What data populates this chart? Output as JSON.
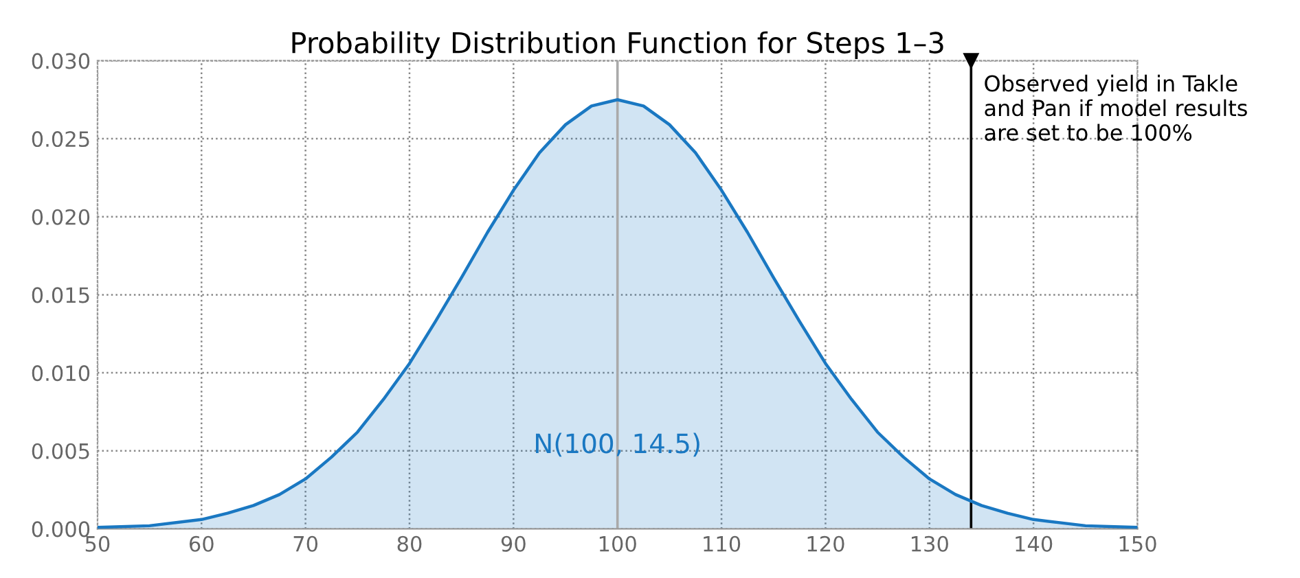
{
  "chart_data": {
    "type": "area",
    "title": "Probability Distribution Function for Steps 1–3",
    "x": [
      50,
      55,
      60,
      62.5,
      65,
      67.5,
      70,
      72.5,
      75,
      77.5,
      80,
      82.5,
      85,
      87.5,
      90,
      92.5,
      95,
      97.5,
      100,
      102.5,
      105,
      107.5,
      110,
      112.5,
      115,
      117.5,
      120,
      122.5,
      125,
      127.5,
      130,
      132.5,
      135,
      137.5,
      140,
      145,
      150
    ],
    "series": [
      {
        "color": "#1a78c2",
        "values": [
          0.0001,
          0.0002,
          0.0006,
          0.001,
          0.0015,
          0.0022,
          0.0032,
          0.0046,
          0.0062,
          0.0083,
          0.0106,
          0.0133,
          0.0161,
          0.019,
          0.0217,
          0.0241,
          0.0259,
          0.0271,
          0.0275,
          0.0271,
          0.0259,
          0.0241,
          0.0217,
          0.019,
          0.0161,
          0.0133,
          0.0106,
          0.0083,
          0.0062,
          0.0046,
          0.0032,
          0.0022,
          0.0015,
          0.001,
          0.0006,
          0.0002,
          0.0001
        ]
      }
    ],
    "xlim": [
      50,
      150
    ],
    "xticks": [
      50,
      60,
      70,
      80,
      90,
      100,
      110,
      120,
      130,
      140,
      150
    ],
    "ylim": [
      0,
      0.03
    ],
    "yticks": [
      {
        "value": 0,
        "label": "0.000"
      },
      {
        "value": 0.005,
        "label": "0.005"
      },
      {
        "value": 0.01,
        "label": "0.010"
      },
      {
        "value": 0.015,
        "label": "0.015"
      },
      {
        "value": 0.02,
        "label": "0.020"
      },
      {
        "value": 0.025,
        "label": "0.025"
      },
      {
        "value": 0.03,
        "label": "0.030"
      }
    ],
    "grid": true,
    "line_style": "solid",
    "marker": "none",
    "ref_lines": [
      {
        "axis": "x",
        "value": 100,
        "label": null,
        "color": "#aaaaaa"
      },
      {
        "axis": "x",
        "value": 134,
        "label": "Observed yield in Takle\nand Pan if model results\nare set to be 100%",
        "color": "#000000"
      }
    ],
    "annotations": [
      {
        "text": "N(100, 14.5)",
        "x": 100,
        "y": 0.0045
      }
    ]
  }
}
